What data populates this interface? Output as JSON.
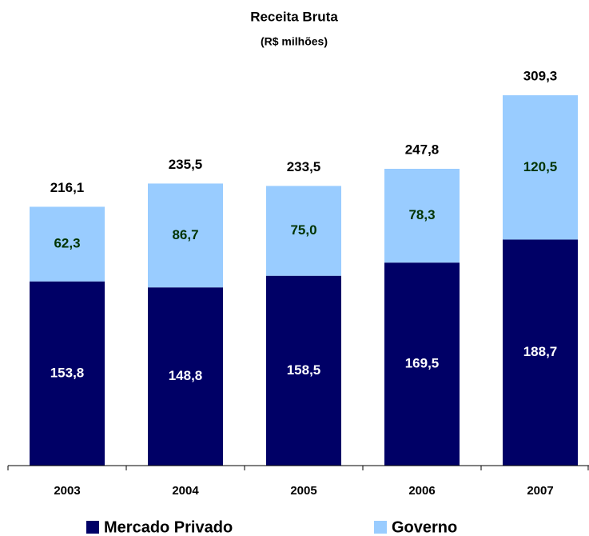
{
  "chart_data": {
    "type": "stacked_bar",
    "title": "Receita Bruta",
    "subtitle": "(R$ milhões)",
    "categories": [
      "2003",
      "2004",
      "2005",
      "2006",
      "2007"
    ],
    "series": [
      {
        "name": "Mercado Privado",
        "color": "#000066",
        "label_color": "#ffffff",
        "values": [
          153.8,
          148.8,
          158.5,
          169.5,
          188.7
        ],
        "value_labels": [
          "153,8",
          "148,8",
          "158,5",
          "169,5",
          "188,7"
        ]
      },
      {
        "name": "Governo",
        "color": "#99ccff",
        "label_color": "#003300",
        "values": [
          62.3,
          86.7,
          75.0,
          78.3,
          120.5
        ],
        "value_labels": [
          "62,3",
          "86,7",
          "75,0",
          "78,3",
          "120,5"
        ]
      }
    ],
    "totals": [
      216.1,
      235.5,
      233.5,
      247.8,
      309.3
    ],
    "total_labels": [
      "216,1",
      "235,5",
      "233,5",
      "247,8",
      "309,3"
    ],
    "ylim": [
      0,
      350
    ]
  }
}
